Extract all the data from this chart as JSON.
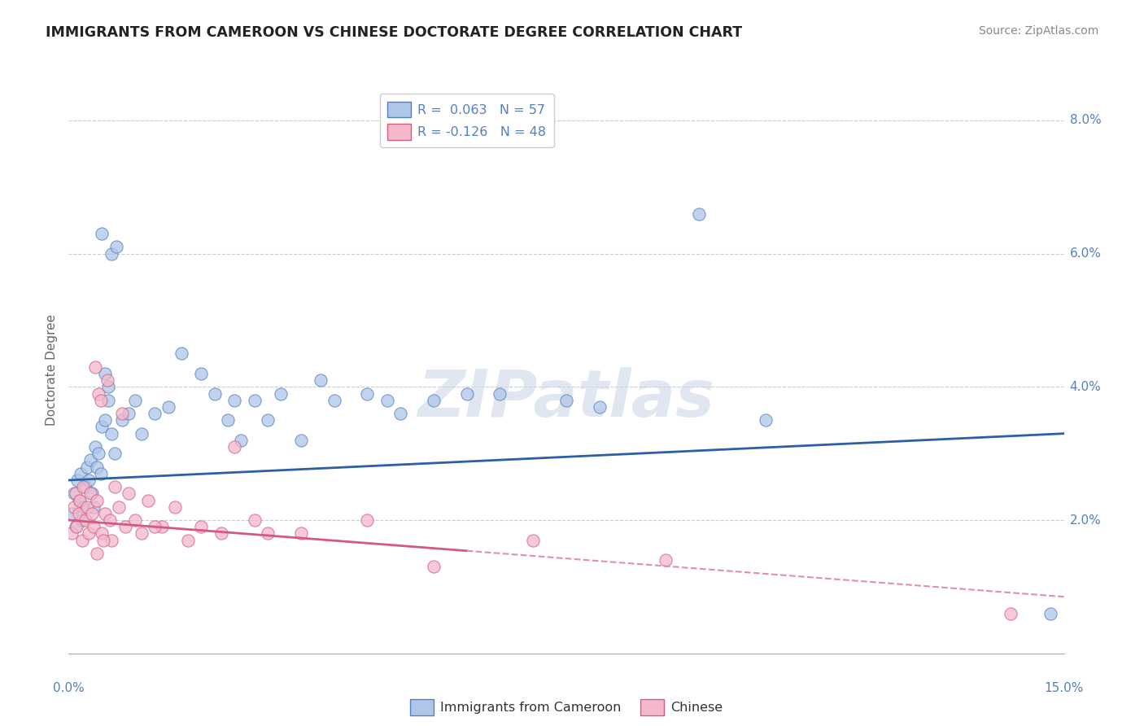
{
  "title": "IMMIGRANTS FROM CAMEROON VS CHINESE DOCTORATE DEGREE CORRELATION CHART",
  "source": "Source: ZipAtlas.com",
  "ylabel": "Doctorate Degree",
  "xlim": [
    0.0,
    15.0
  ],
  "ylim": [
    0.0,
    8.5
  ],
  "ytick_vals": [
    2.0,
    4.0,
    6.0,
    8.0
  ],
  "ytick_labels": [
    "2.0%",
    "4.0%",
    "6.0%",
    "8.0%"
  ],
  "color_blue": "#aec6e8",
  "color_pink": "#f5b8cb",
  "edge_blue": "#5580c0",
  "edge_pink": "#d06080",
  "trend_blue_color": "#2c5fa8",
  "trend_pink_solid_color": "#d45880",
  "trend_pink_dash_color": "#e090a8",
  "watermark_color": "#ccd8e8",
  "bg_color": "#ffffff",
  "grid_color": "#cccccc",
  "title_color": "#222222",
  "source_color": "#888888",
  "tick_label_color": "#5580c0",
  "ylabel_color": "#666666",
  "legend_label_color": "#5580c0",
  "blue_trend_x0": 0.0,
  "blue_trend_y0": 2.6,
  "blue_trend_x1": 15.0,
  "blue_trend_y1": 3.3,
  "pink_trend_x0": 0.0,
  "pink_trend_y0": 2.0,
  "pink_solid_x1": 6.0,
  "pink_solid_y1": 1.5,
  "pink_dash_x1": 15.0,
  "pink_dash_y1": 0.85,
  "cam_x": [
    0.05,
    0.08,
    0.1,
    0.13,
    0.15,
    0.18,
    0.2,
    0.22,
    0.25,
    0.28,
    0.3,
    0.33,
    0.35,
    0.38,
    0.4,
    0.42,
    0.45,
    0.48,
    0.5,
    0.55,
    0.6,
    0.65,
    0.7,
    0.8,
    0.9,
    1.0,
    1.1,
    1.3,
    1.5,
    1.7,
    2.0,
    2.2,
    2.5,
    2.8,
    3.0,
    3.5,
    4.5,
    5.5,
    6.5,
    9.5,
    14.8,
    2.4,
    0.5,
    0.65,
    0.72,
    4.0,
    3.2,
    6.0,
    5.0,
    4.8,
    3.8,
    7.5,
    8.0,
    10.5,
    2.6,
    0.55,
    0.6
  ],
  "cam_y": [
    2.1,
    2.4,
    1.9,
    2.6,
    2.3,
    2.7,
    2.0,
    2.2,
    2.5,
    2.8,
    2.6,
    2.9,
    2.4,
    2.2,
    3.1,
    2.8,
    3.0,
    2.7,
    3.4,
    3.5,
    3.8,
    3.3,
    3.0,
    3.5,
    3.6,
    3.8,
    3.3,
    3.6,
    3.7,
    4.5,
    4.2,
    3.9,
    3.8,
    3.8,
    3.5,
    3.2,
    3.9,
    3.8,
    3.9,
    6.6,
    0.6,
    3.5,
    6.3,
    6.0,
    6.1,
    3.8,
    3.9,
    3.9,
    3.6,
    3.8,
    4.1,
    3.8,
    3.7,
    3.5,
    3.2,
    4.2,
    4.0
  ],
  "chi_x": [
    0.05,
    0.08,
    0.1,
    0.12,
    0.15,
    0.17,
    0.2,
    0.22,
    0.25,
    0.28,
    0.3,
    0.33,
    0.35,
    0.38,
    0.4,
    0.43,
    0.45,
    0.48,
    0.5,
    0.55,
    0.58,
    0.62,
    0.65,
    0.7,
    0.75,
    0.8,
    0.85,
    0.9,
    1.0,
    1.1,
    1.2,
    1.4,
    1.6,
    1.8,
    2.0,
    2.3,
    2.5,
    2.8,
    3.0,
    3.5,
    4.5,
    5.5,
    7.0,
    9.0,
    14.2,
    1.3,
    0.42,
    0.52
  ],
  "chi_y": [
    1.8,
    2.2,
    2.4,
    1.9,
    2.1,
    2.3,
    1.7,
    2.5,
    2.0,
    2.2,
    1.8,
    2.4,
    2.1,
    1.9,
    4.3,
    2.3,
    3.9,
    3.8,
    1.8,
    2.1,
    4.1,
    2.0,
    1.7,
    2.5,
    2.2,
    3.6,
    1.9,
    2.4,
    2.0,
    1.8,
    2.3,
    1.9,
    2.2,
    1.7,
    1.9,
    1.8,
    3.1,
    2.0,
    1.8,
    1.8,
    2.0,
    1.3,
    1.7,
    1.4,
    0.6,
    1.9,
    1.5,
    1.7
  ]
}
